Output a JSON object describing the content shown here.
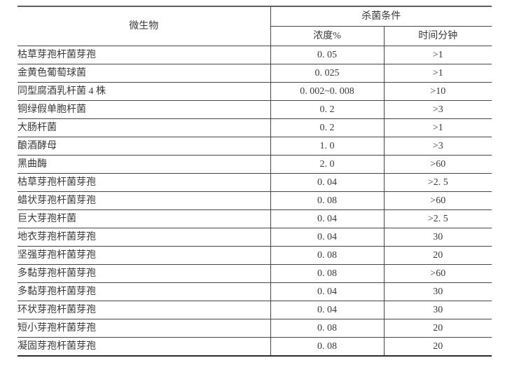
{
  "table": {
    "header": {
      "microorganism": "微生物",
      "condition_group": "杀菌条件",
      "concentration": "浓度%",
      "time": "时间分钟"
    },
    "rows": [
      {
        "name": "枯草芽孢杆菌芽孢",
        "concentration": "0. 05",
        "time": ">1"
      },
      {
        "name": "金黄色葡萄球菌",
        "concentration": "0. 025",
        "time": ">1"
      },
      {
        "name": "同型腐酒乳杆菌 4 株",
        "concentration": "0. 002~0. 008",
        "time": ">10"
      },
      {
        "name": "铜绿假单胞杆菌",
        "concentration": "0. 2",
        "time": ">3"
      },
      {
        "name": "大肠杆菌",
        "concentration": "0. 2",
        "time": ">1"
      },
      {
        "name": "酿酒酵母",
        "concentration": "1. 0",
        "time": ">3"
      },
      {
        "name": "黑曲酶",
        "concentration": "2. 0",
        "time": ">60"
      },
      {
        "name": "枯草芽孢杆菌芽孢",
        "concentration": "0. 04",
        "time": ">2. 5"
      },
      {
        "name": "蜡状芽孢杆菌芽孢",
        "concentration": "0. 08",
        "time": ">60"
      },
      {
        "name": "巨大芽孢杆菌",
        "concentration": "0. 04",
        "time": ">2. 5"
      },
      {
        "name": "地衣芽孢杆菌芽孢",
        "concentration": "0. 04",
        "time": "30"
      },
      {
        "name": "坚强芽孢杆菌芽孢",
        "concentration": "0. 08",
        "time": "20"
      },
      {
        "name": "多黏芽孢杆菌芽孢",
        "concentration": "0. 08",
        "time": ">60"
      },
      {
        "name": "多黏芽孢杆菌芽孢",
        "concentration": "0. 04",
        "time": "30"
      },
      {
        "name": "环状芽孢杆菌芽孢",
        "concentration": "0. 04",
        "time": "30"
      },
      {
        "name": "短小芽孢杆菌芽孢",
        "concentration": "0. 08",
        "time": "20"
      },
      {
        "name": "凝固芽孢杆菌芽孢",
        "concentration": "0. 08",
        "time": "20"
      }
    ]
  }
}
